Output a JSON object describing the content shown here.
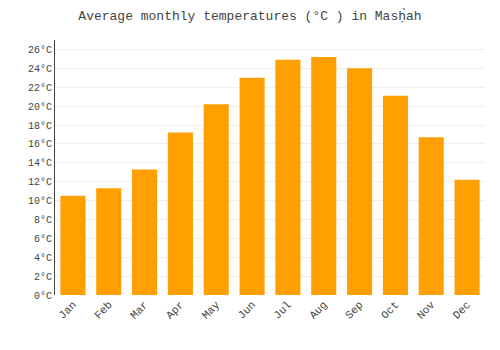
{
  "chart_data": {
    "type": "bar",
    "title": "Average monthly temperatures (°C ) in Masḥ̀ah",
    "categories": [
      "Jan",
      "Feb",
      "Mar",
      "Apr",
      "May",
      "Jun",
      "Jul",
      "Aug",
      "Sep",
      "Oct",
      "Nov",
      "Dec"
    ],
    "values": [
      10.5,
      11.3,
      13.3,
      17.2,
      20.2,
      23.0,
      24.9,
      25.2,
      24.0,
      21.1,
      16.7,
      12.2
    ],
    "color": "#FFA000",
    "ylim": [
      0,
      27
    ],
    "yticks": [
      {
        "value": 0,
        "label": "0°C"
      },
      {
        "value": 2,
        "label": "2°C"
      },
      {
        "value": 4,
        "label": "4°C"
      },
      {
        "value": 6,
        "label": "6°C"
      },
      {
        "value": 8,
        "label": "8°C"
      },
      {
        "value": 10,
        "label": "10°C"
      },
      {
        "value": 12,
        "label": "12°C"
      },
      {
        "value": 14,
        "label": "14°C"
      },
      {
        "value": 16,
        "label": "16°C"
      },
      {
        "value": 18,
        "label": "18°C"
      },
      {
        "value": 20,
        "label": "20°C"
      },
      {
        "value": 22,
        "label": "22°C"
      },
      {
        "value": 24,
        "label": "24°C"
      },
      {
        "value": 26,
        "label": "26°C"
      }
    ],
    "grid": true
  }
}
